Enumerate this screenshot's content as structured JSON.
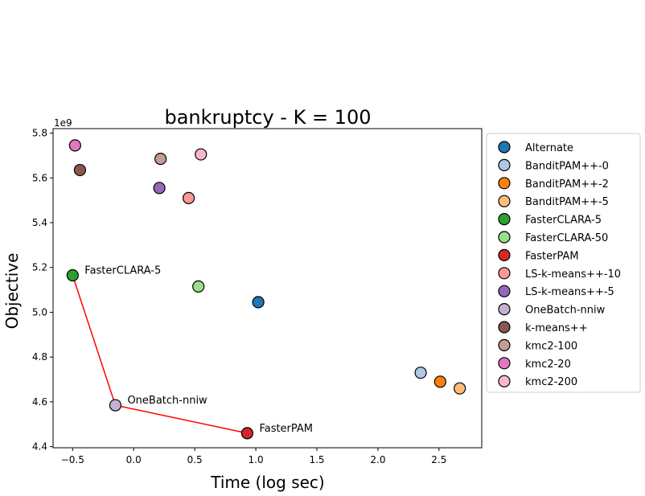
{
  "chart_data": {
    "type": "scatter",
    "title": "bankruptcy - K = 100",
    "xlabel": "Time (log sec)",
    "ylabel": "Objective",
    "y_offset_label": "1e9",
    "xlim": [
      -0.66,
      2.85
    ],
    "ylim": [
      4.395,
      5.82
    ],
    "xticks": [
      -0.5,
      0.0,
      0.5,
      1.0,
      1.5,
      2.0,
      2.5
    ],
    "xtick_labels": [
      "−0.5",
      "0.0",
      "0.5",
      "1.0",
      "1.5",
      "2.0",
      "2.5"
    ],
    "yticks": [
      4.4,
      4.6,
      4.8,
      5.0,
      5.2,
      5.4,
      5.6,
      5.8
    ],
    "ytick_labels": [
      "4.4",
      "4.6",
      "4.8",
      "5.0",
      "5.2",
      "5.4",
      "5.6",
      "5.8"
    ],
    "legend_position": "outside-right",
    "grid": false,
    "series": [
      {
        "name": "Alternate",
        "color": "#1f77b4",
        "x": 1.02,
        "y": 5.045
      },
      {
        "name": "BanditPAM++-0",
        "color": "#aec7e8",
        "x": 2.35,
        "y": 4.73
      },
      {
        "name": "BanditPAM++-2",
        "color": "#ff7f0e",
        "x": 2.51,
        "y": 4.69
      },
      {
        "name": "BanditPAM++-5",
        "color": "#ffbb78",
        "x": 2.67,
        "y": 4.66
      },
      {
        "name": "FasterCLARA-5",
        "color": "#2ca02c",
        "x": -0.5,
        "y": 5.165
      },
      {
        "name": "FasterCLARA-50",
        "color": "#98df8a",
        "x": 0.53,
        "y": 5.115
      },
      {
        "name": "FasterPAM",
        "color": "#d62728",
        "x": 0.93,
        "y": 4.46
      },
      {
        "name": "LS-k-means++-10",
        "color": "#ff9896",
        "x": 0.45,
        "y": 5.51
      },
      {
        "name": "LS-k-means++-5",
        "color": "#9467bd",
        "x": 0.21,
        "y": 5.555
      },
      {
        "name": "OneBatch-nniw",
        "color": "#c5b0d5",
        "x": -0.15,
        "y": 4.585
      },
      {
        "name": "k-means++",
        "color": "#8c564b",
        "x": -0.44,
        "y": 5.635
      },
      {
        "name": "kmc2-100",
        "color": "#c49c94",
        "x": 0.22,
        "y": 5.685
      },
      {
        "name": "kmc2-20",
        "color": "#e377c2",
        "x": -0.48,
        "y": 5.745
      },
      {
        "name": "kmc2-200",
        "color": "#f7b6d2",
        "x": 0.55,
        "y": 5.705
      }
    ],
    "pareto_front": {
      "color": "#ff0000",
      "points": [
        {
          "x": -0.5,
          "y": 5.165
        },
        {
          "x": -0.15,
          "y": 4.585
        },
        {
          "x": 0.93,
          "y": 4.46
        }
      ]
    },
    "annotations": [
      {
        "text": "FasterCLARA-5",
        "x": -0.5,
        "y": 5.165
      },
      {
        "text": "OneBatch-nniw",
        "x": -0.15,
        "y": 4.585
      },
      {
        "text": "FasterPAM",
        "x": 0.93,
        "y": 4.46
      }
    ]
  }
}
